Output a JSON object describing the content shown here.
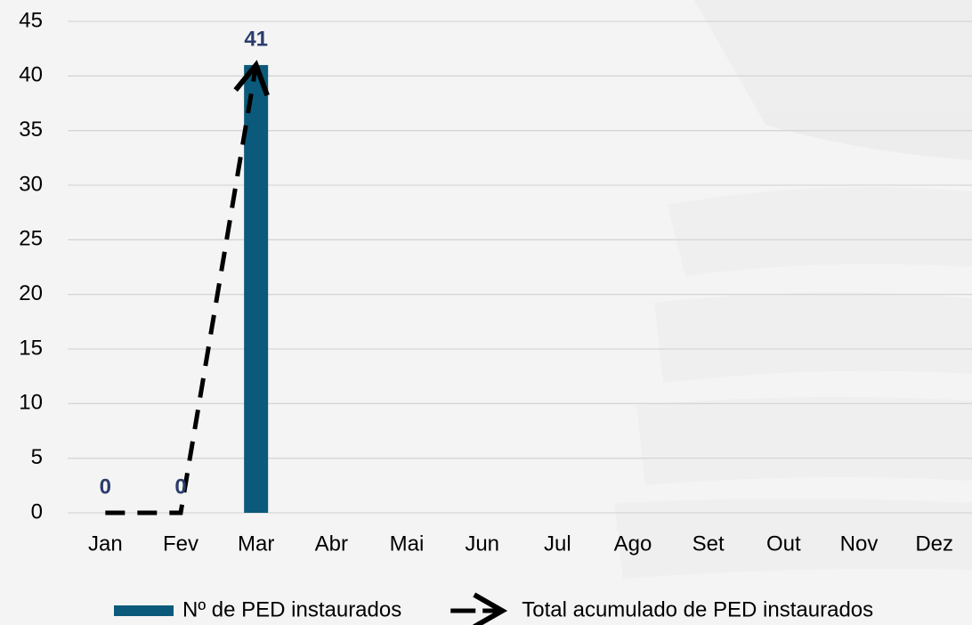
{
  "chart_data": {
    "type": "combo",
    "categories": [
      "Jan",
      "Fev",
      "Mar",
      "Abr",
      "Mai",
      "Jun",
      "Jul",
      "Ago",
      "Set",
      "Out",
      "Nov",
      "Dez"
    ],
    "series": [
      {
        "name": "Nº de PED instaurados",
        "type": "bar",
        "color": "#0b5a7b",
        "values": [
          0,
          0,
          41,
          null,
          null,
          null,
          null,
          null,
          null,
          null,
          null,
          null
        ]
      },
      {
        "name": "Total acumulado de PED instaurados",
        "type": "line",
        "color": "#000000",
        "values": [
          0,
          0,
          41,
          null,
          null,
          null,
          null,
          null,
          null,
          null,
          null,
          null
        ]
      }
    ],
    "label_color": "#2b3d6b",
    "ylim": [
      0,
      45
    ],
    "yticks": [
      0,
      5,
      10,
      15,
      20,
      25,
      30,
      35,
      40,
      45
    ],
    "grid": true,
    "legend": "bottom"
  }
}
